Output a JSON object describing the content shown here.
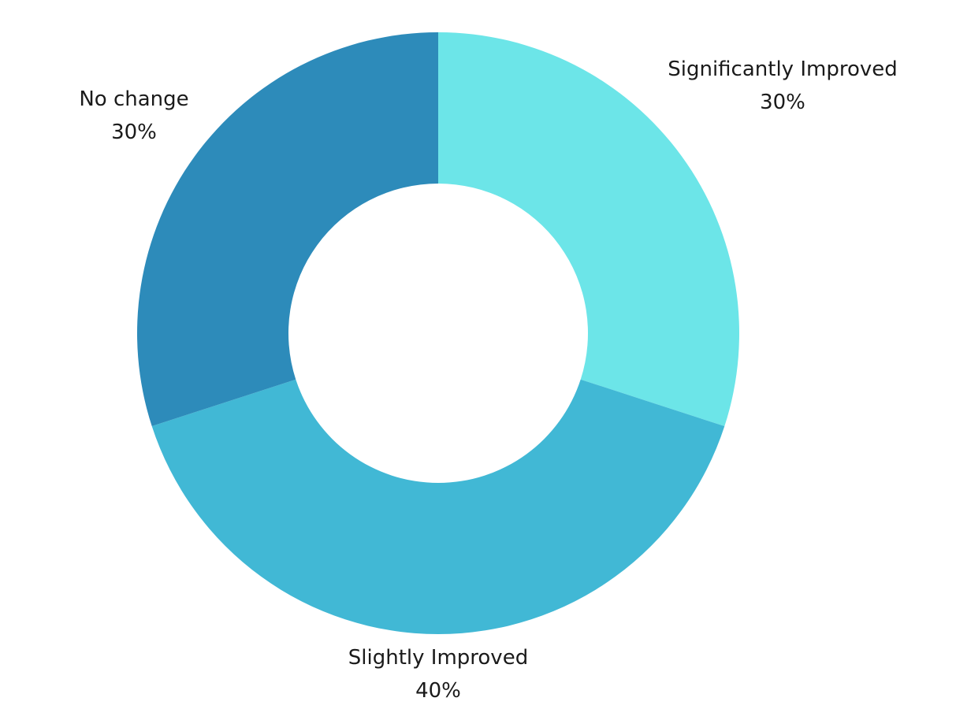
{
  "chart_data": {
    "type": "pie",
    "style": "donut",
    "start_angle_deg": 0,
    "direction": "clockwise",
    "slices": [
      {
        "label": "Significantly Improved",
        "value": 30,
        "value_label": "30%",
        "color": "#6ce5e8"
      },
      {
        "label": "Slightly Improved",
        "value": 40,
        "value_label": "40%",
        "color": "#41b8d5"
      },
      {
        "label": "No change",
        "value": 30,
        "value_label": "30%",
        "color": "#2d8bba"
      }
    ]
  }
}
